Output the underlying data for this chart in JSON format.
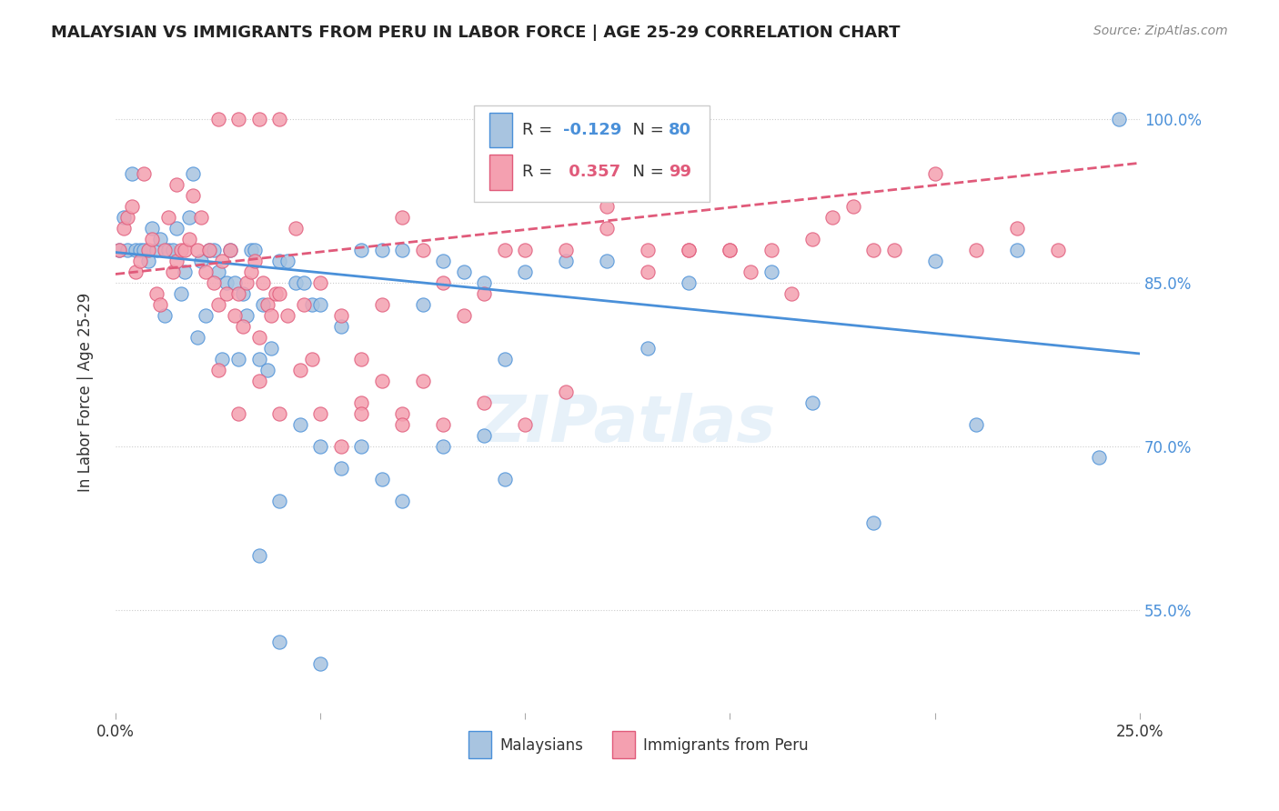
{
  "title": "MALAYSIAN VS IMMIGRANTS FROM PERU IN LABOR FORCE | AGE 25-29 CORRELATION CHART",
  "source": "Source: ZipAtlas.com",
  "ylabel": "In Labor Force | Age 25-29",
  "x_range": [
    0.0,
    0.25
  ],
  "y_range": [
    0.455,
    1.045
  ],
  "legend_blue_R": "-0.129",
  "legend_blue_N": "80",
  "legend_pink_R": "0.357",
  "legend_pink_N": "99",
  "blue_color": "#a8c4e0",
  "pink_color": "#f4a0b0",
  "blue_line_color": "#4a90d9",
  "pink_line_color": "#e05a7a",
  "blue_points": [
    [
      0.001,
      0.88
    ],
    [
      0.002,
      0.91
    ],
    [
      0.003,
      0.88
    ],
    [
      0.004,
      0.95
    ],
    [
      0.005,
      0.88
    ],
    [
      0.006,
      0.88
    ],
    [
      0.007,
      0.88
    ],
    [
      0.008,
      0.87
    ],
    [
      0.009,
      0.9
    ],
    [
      0.01,
      0.88
    ],
    [
      0.011,
      0.89
    ],
    [
      0.012,
      0.82
    ],
    [
      0.013,
      0.88
    ],
    [
      0.014,
      0.88
    ],
    [
      0.015,
      0.9
    ],
    [
      0.016,
      0.84
    ],
    [
      0.017,
      0.86
    ],
    [
      0.018,
      0.91
    ],
    [
      0.019,
      0.95
    ],
    [
      0.02,
      0.8
    ],
    [
      0.021,
      0.87
    ],
    [
      0.022,
      0.82
    ],
    [
      0.023,
      0.88
    ],
    [
      0.024,
      0.88
    ],
    [
      0.025,
      0.86
    ],
    [
      0.026,
      0.78
    ],
    [
      0.027,
      0.85
    ],
    [
      0.028,
      0.88
    ],
    [
      0.029,
      0.85
    ],
    [
      0.03,
      0.78
    ],
    [
      0.031,
      0.84
    ],
    [
      0.032,
      0.82
    ],
    [
      0.033,
      0.88
    ],
    [
      0.034,
      0.88
    ],
    [
      0.035,
      0.78
    ],
    [
      0.036,
      0.83
    ],
    [
      0.037,
      0.77
    ],
    [
      0.038,
      0.79
    ],
    [
      0.04,
      0.87
    ],
    [
      0.042,
      0.87
    ],
    [
      0.044,
      0.85
    ],
    [
      0.046,
      0.85
    ],
    [
      0.048,
      0.83
    ],
    [
      0.05,
      0.83
    ],
    [
      0.055,
      0.81
    ],
    [
      0.06,
      0.88
    ],
    [
      0.065,
      0.88
    ],
    [
      0.07,
      0.88
    ],
    [
      0.075,
      0.83
    ],
    [
      0.08,
      0.87
    ],
    [
      0.085,
      0.86
    ],
    [
      0.09,
      0.85
    ],
    [
      0.095,
      0.78
    ],
    [
      0.1,
      0.86
    ],
    [
      0.11,
      0.87
    ],
    [
      0.12,
      0.87
    ],
    [
      0.13,
      0.79
    ],
    [
      0.14,
      0.85
    ],
    [
      0.05,
      0.7
    ],
    [
      0.06,
      0.7
    ],
    [
      0.045,
      0.72
    ],
    [
      0.065,
      0.67
    ],
    [
      0.055,
      0.68
    ],
    [
      0.04,
      0.65
    ],
    [
      0.08,
      0.7
    ],
    [
      0.09,
      0.71
    ],
    [
      0.07,
      0.65
    ],
    [
      0.095,
      0.67
    ],
    [
      0.035,
      0.6
    ],
    [
      0.04,
      0.52
    ],
    [
      0.05,
      0.5
    ],
    [
      0.16,
      0.86
    ],
    [
      0.17,
      0.74
    ],
    [
      0.185,
      0.63
    ],
    [
      0.2,
      0.87
    ],
    [
      0.21,
      0.72
    ],
    [
      0.22,
      0.88
    ],
    [
      0.24,
      0.69
    ],
    [
      0.245,
      1.0
    ]
  ],
  "pink_points": [
    [
      0.001,
      0.88
    ],
    [
      0.002,
      0.9
    ],
    [
      0.003,
      0.91
    ],
    [
      0.004,
      0.92
    ],
    [
      0.005,
      0.86
    ],
    [
      0.006,
      0.87
    ],
    [
      0.007,
      0.95
    ],
    [
      0.008,
      0.88
    ],
    [
      0.009,
      0.89
    ],
    [
      0.01,
      0.84
    ],
    [
      0.011,
      0.83
    ],
    [
      0.012,
      0.88
    ],
    [
      0.013,
      0.91
    ],
    [
      0.014,
      0.86
    ],
    [
      0.015,
      0.87
    ],
    [
      0.016,
      0.88
    ],
    [
      0.017,
      0.88
    ],
    [
      0.018,
      0.89
    ],
    [
      0.019,
      0.93
    ],
    [
      0.02,
      0.88
    ],
    [
      0.021,
      0.91
    ],
    [
      0.022,
      0.86
    ],
    [
      0.023,
      0.88
    ],
    [
      0.024,
      0.85
    ],
    [
      0.025,
      0.83
    ],
    [
      0.026,
      0.87
    ],
    [
      0.027,
      0.84
    ],
    [
      0.028,
      0.88
    ],
    [
      0.029,
      0.82
    ],
    [
      0.03,
      0.84
    ],
    [
      0.031,
      0.81
    ],
    [
      0.032,
      0.85
    ],
    [
      0.033,
      0.86
    ],
    [
      0.034,
      0.87
    ],
    [
      0.035,
      0.8
    ],
    [
      0.036,
      0.85
    ],
    [
      0.037,
      0.83
    ],
    [
      0.038,
      0.82
    ],
    [
      0.039,
      0.84
    ],
    [
      0.04,
      0.84
    ],
    [
      0.042,
      0.82
    ],
    [
      0.044,
      0.9
    ],
    [
      0.046,
      0.83
    ],
    [
      0.048,
      0.78
    ],
    [
      0.05,
      0.85
    ],
    [
      0.055,
      0.82
    ],
    [
      0.06,
      0.78
    ],
    [
      0.065,
      0.83
    ],
    [
      0.07,
      0.91
    ],
    [
      0.075,
      0.88
    ],
    [
      0.08,
      0.85
    ],
    [
      0.085,
      0.82
    ],
    [
      0.09,
      0.84
    ],
    [
      0.095,
      0.88
    ],
    [
      0.1,
      0.88
    ],
    [
      0.11,
      0.88
    ],
    [
      0.12,
      0.9
    ],
    [
      0.13,
      0.86
    ],
    [
      0.14,
      0.88
    ],
    [
      0.15,
      0.88
    ],
    [
      0.06,
      0.74
    ],
    [
      0.07,
      0.73
    ],
    [
      0.075,
      0.76
    ],
    [
      0.08,
      0.72
    ],
    [
      0.09,
      0.74
    ],
    [
      0.1,
      0.72
    ],
    [
      0.11,
      0.75
    ],
    [
      0.12,
      0.92
    ],
    [
      0.13,
      0.88
    ],
    [
      0.14,
      0.88
    ],
    [
      0.15,
      0.88
    ],
    [
      0.155,
      0.86
    ],
    [
      0.16,
      0.88
    ],
    [
      0.165,
      0.84
    ],
    [
      0.17,
      0.89
    ],
    [
      0.175,
      0.91
    ],
    [
      0.18,
      0.92
    ],
    [
      0.185,
      0.88
    ],
    [
      0.19,
      0.88
    ],
    [
      0.2,
      0.95
    ],
    [
      0.21,
      0.88
    ],
    [
      0.22,
      0.9
    ],
    [
      0.23,
      0.88
    ],
    [
      0.025,
      0.77
    ],
    [
      0.03,
      0.73
    ],
    [
      0.035,
      0.76
    ],
    [
      0.04,
      0.73
    ],
    [
      0.045,
      0.77
    ],
    [
      0.05,
      0.73
    ],
    [
      0.055,
      0.7
    ],
    [
      0.06,
      0.73
    ],
    [
      0.065,
      0.76
    ],
    [
      0.07,
      0.72
    ],
    [
      0.025,
      1.0
    ],
    [
      0.03,
      1.0
    ],
    [
      0.035,
      1.0
    ],
    [
      0.04,
      1.0
    ],
    [
      0.015,
      0.94
    ]
  ],
  "watermark": "ZIPatlas",
  "blue_line": {
    "x0": 0.0,
    "y0": 0.878,
    "x1": 0.25,
    "y1": 0.785
  },
  "pink_line": {
    "x0": 0.0,
    "y0": 0.858,
    "x1": 0.25,
    "y1": 0.96
  },
  "y_tick_positions": [
    0.55,
    0.7,
    0.85,
    1.0
  ],
  "y_tick_labels": [
    "55.0%",
    "70.0%",
    "85.0%",
    "100.0%"
  ],
  "x_tick_positions": [
    0.0,
    0.05,
    0.1,
    0.15,
    0.2,
    0.25
  ],
  "x_tick_labels": [
    "0.0%",
    "",
    "",
    "",
    "",
    "25.0%"
  ]
}
